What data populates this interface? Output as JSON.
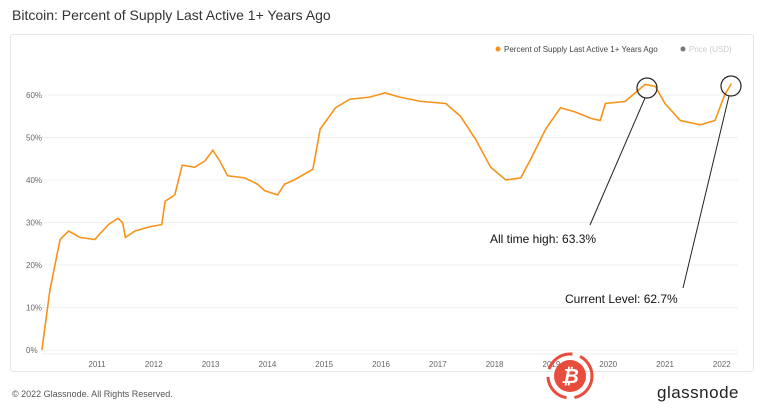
{
  "header": {
    "title": "Bitcoin: Percent of Supply Last Active 1+ Years Ago"
  },
  "footer": {
    "copyright": "© 2022 Glassnode. All Rights Reserved.",
    "brand": "glassnode"
  },
  "colors": {
    "series": "#f7931a",
    "price": "#777777",
    "annotation": "#222222",
    "watermark": "#e74c3c"
  },
  "chart_data": {
    "type": "line",
    "title": "Bitcoin: Percent of Supply Last Active 1+ Years Ago",
    "legend": {
      "placement": "top-right",
      "entries": [
        {
          "name": "Percent of Supply Last Active 1+ Years Ago",
          "color": "#f7931a"
        },
        {
          "name": "Price (USD)",
          "color": "#777777"
        }
      ]
    },
    "xticks": [
      "2011",
      "2012",
      "2013",
      "2014",
      "2015",
      "2016",
      "2017",
      "2018",
      "2019",
      "2020",
      "2021",
      "2022"
    ],
    "yticks": [
      "0%",
      "10%",
      "20%",
      "30%",
      "40%",
      "50%",
      "60%"
    ],
    "ylim": [
      0,
      65
    ],
    "grid": true,
    "series": [
      {
        "name": "Percent of Supply Last Active 1+ Years Ago",
        "x": [
          2010.03,
          2010.17,
          2010.35,
          2010.5,
          2010.7,
          2010.96,
          2011.2,
          2011.37,
          2011.45,
          2011.5,
          2011.67,
          2011.93,
          2012.14,
          2012.2,
          2012.37,
          2012.5,
          2012.72,
          2012.9,
          2013.04,
          2013.16,
          2013.3,
          2013.6,
          2013.83,
          2013.95,
          2014.18,
          2014.3,
          2014.47,
          2014.8,
          2014.93,
          2015.2,
          2015.45,
          2015.8,
          2016.07,
          2016.33,
          2016.7,
          2017.14,
          2017.4,
          2017.67,
          2017.93,
          2018.2,
          2018.46,
          2018.64,
          2018.9,
          2019.16,
          2019.42,
          2019.7,
          2019.86,
          2019.95,
          2020.3,
          2020.65,
          2020.83,
          2021.0,
          2021.27,
          2021.62,
          2021.88,
          2022.05,
          2022.17
        ],
        "values": [
          0,
          14,
          26,
          28,
          26.5,
          26,
          29.5,
          31,
          30,
          26.5,
          28,
          29,
          29.5,
          35,
          36.5,
          43.5,
          43,
          44.5,
          47,
          44.5,
          41,
          40.5,
          39,
          37.5,
          36.5,
          39,
          40,
          42.5,
          52,
          57,
          59,
          59.5,
          60.5,
          59.5,
          58.5,
          58,
          55,
          49.5,
          43,
          40,
          40.5,
          45,
          52,
          57,
          56,
          54.5,
          54,
          58,
          58.5,
          62.5,
          62,
          58,
          54,
          53,
          54,
          60,
          62.7
        ]
      }
    ],
    "annotations": [
      {
        "text": "All time high: 63.3%",
        "x": 2020.75,
        "y": 63.3
      },
      {
        "text": "Current Level: 62.7%",
        "x": 2022.17,
        "y": 62.7
      }
    ]
  }
}
